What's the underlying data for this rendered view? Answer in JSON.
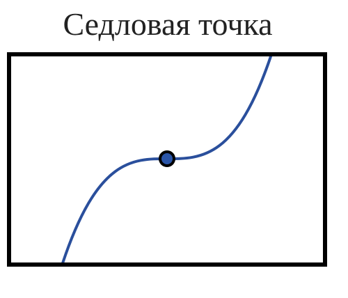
{
  "title": "Седловая точка"
}
